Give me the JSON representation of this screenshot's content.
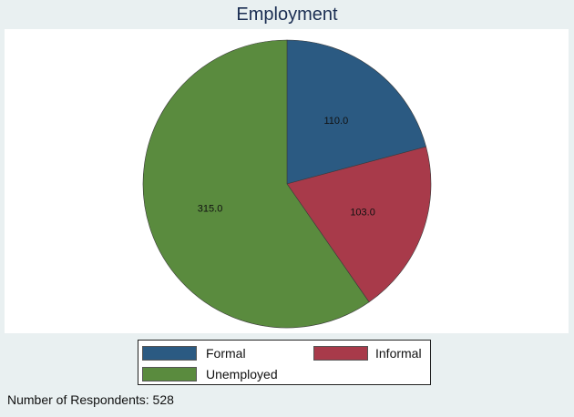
{
  "chart_data": {
    "type": "pie",
    "title": "Employment",
    "slices": [
      {
        "name": "Formal",
        "value": 110,
        "label": "110.0",
        "color": "#2b5a82"
      },
      {
        "name": "Informal",
        "value": 103,
        "label": "103.0",
        "color": "#a83a4a"
      },
      {
        "name": "Unemployed",
        "value": 315,
        "label": "315.0",
        "color": "#5a8b3e"
      }
    ],
    "start_angle_deg": 90,
    "direction": "clockwise",
    "legend_position": "bottom"
  },
  "legend": {
    "items": [
      {
        "label": "Formal",
        "color": "#2b5a82"
      },
      {
        "label": "Informal",
        "color": "#a83a4a"
      },
      {
        "label": "Unemployed",
        "color": "#5a8b3e"
      }
    ]
  },
  "note": "Number of Respondents: 528"
}
